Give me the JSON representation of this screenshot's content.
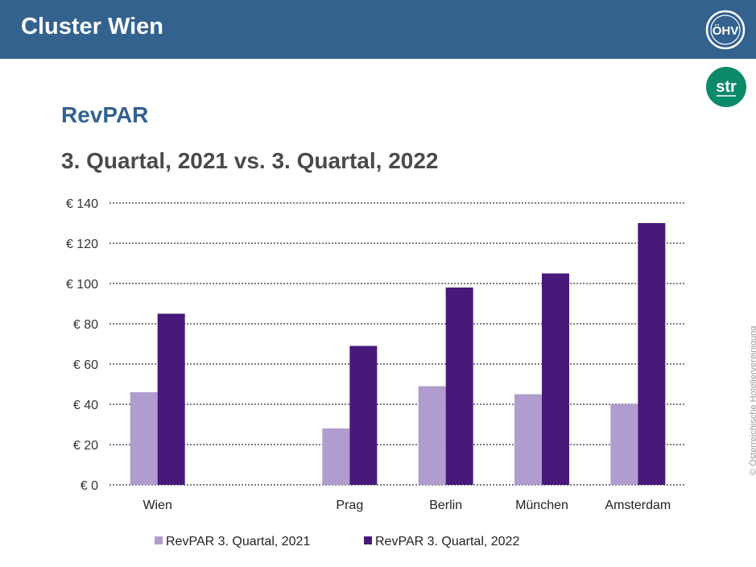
{
  "header": {
    "title": "Cluster Wien"
  },
  "logos": {
    "oehv": "ÖHV",
    "str": "str"
  },
  "colors": {
    "header_bg": "#33628F",
    "series_2021": "#B09CCE",
    "series_2022": "#47197A",
    "str_green": "#0B8A6A"
  },
  "chart_data": {
    "type": "bar",
    "title": "RevPAR",
    "subtitle": "3. Quartal, 2021 vs. 3. Quartal, 2022",
    "categories": [
      "Wien",
      "",
      "Prag",
      "Berlin",
      "München",
      "Amsterdam"
    ],
    "series": [
      {
        "name": "RevPAR 3. Quartal, 2021",
        "values": [
          46,
          null,
          28,
          49,
          45,
          40
        ]
      },
      {
        "name": "RevPAR 3. Quartal, 2022",
        "values": [
          85,
          null,
          69,
          98,
          105,
          130
        ]
      }
    ],
    "y_ticks": [
      "€ 0",
      "€ 20",
      "€ 40",
      "€ 60",
      "€ 80",
      "€ 100",
      "€ 120",
      "€ 140"
    ],
    "ylim": [
      0,
      140
    ],
    "grid": true,
    "legend_position": "bottom"
  },
  "footer": {
    "copyright": "© Österreichische Hoteliervereinigung"
  }
}
